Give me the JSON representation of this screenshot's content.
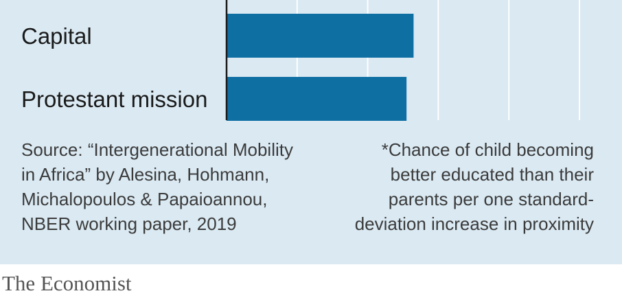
{
  "chart_data": {
    "type": "bar",
    "orientation": "horizontal",
    "categories": [
      "Capital",
      "Protestant mission"
    ],
    "values": [
      2.65,
      2.55
    ],
    "xlim": [
      0,
      5
    ],
    "gridlines": [
      0,
      1,
      2,
      3,
      4,
      5
    ],
    "grid": true,
    "bar_color": "#0e6fa3",
    "title": "",
    "xlabel": "",
    "ylabel": ""
  },
  "notes": {
    "source_lines": [
      "Source: “Intergenerational Mobility",
      "in Africa” by Alesina, Hohmann,",
      "Michalopoulos & Papaioannou,",
      "NBER working paper, 2019"
    ],
    "footnote_lines": [
      "*Chance of child becoming",
      "better educated than their",
      "parents per one standard-",
      "deviation increase in proximity"
    ]
  },
  "brand": "The Economist",
  "colors": {
    "panel_background": "#dae9f2",
    "gridline": "#ffffff",
    "axis": "#1a1a1a"
  }
}
